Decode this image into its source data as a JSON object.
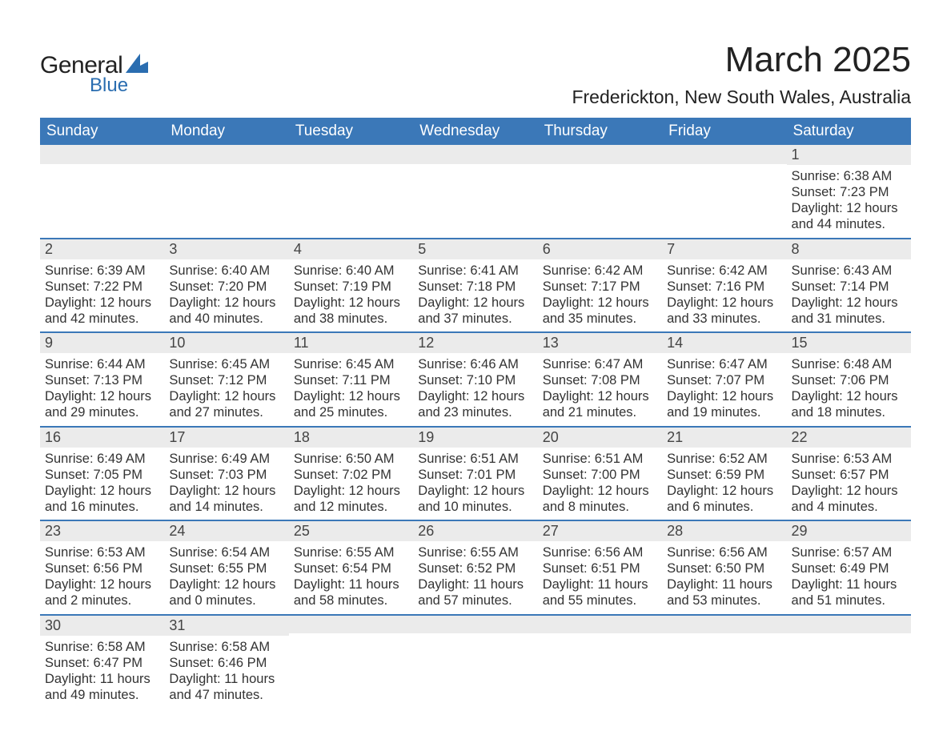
{
  "brand": {
    "general": "General",
    "blue": "Blue"
  },
  "title": "March 2025",
  "location": "Frederickton, New South Wales, Australia",
  "colors": {
    "header_bg": "#3b78b8",
    "header_text": "#ffffff",
    "daynum_bg": "#ebebeb",
    "daynum_border": "#3b78b8",
    "body_text": "#333333",
    "page_bg": "#ffffff",
    "logo_blue": "#2a6db0"
  },
  "weekdays": [
    "Sunday",
    "Monday",
    "Tuesday",
    "Wednesday",
    "Thursday",
    "Friday",
    "Saturday"
  ],
  "weeks": [
    [
      {
        "day": "",
        "sunrise": "",
        "sunset": "",
        "daylight": ""
      },
      {
        "day": "",
        "sunrise": "",
        "sunset": "",
        "daylight": ""
      },
      {
        "day": "",
        "sunrise": "",
        "sunset": "",
        "daylight": ""
      },
      {
        "day": "",
        "sunrise": "",
        "sunset": "",
        "daylight": ""
      },
      {
        "day": "",
        "sunrise": "",
        "sunset": "",
        "daylight": ""
      },
      {
        "day": "",
        "sunrise": "",
        "sunset": "",
        "daylight": ""
      },
      {
        "day": "1",
        "sunrise": "Sunrise: 6:38 AM",
        "sunset": "Sunset: 7:23 PM",
        "daylight": "Daylight: 12 hours and 44 minutes."
      }
    ],
    [
      {
        "day": "2",
        "sunrise": "Sunrise: 6:39 AM",
        "sunset": "Sunset: 7:22 PM",
        "daylight": "Daylight: 12 hours and 42 minutes."
      },
      {
        "day": "3",
        "sunrise": "Sunrise: 6:40 AM",
        "sunset": "Sunset: 7:20 PM",
        "daylight": "Daylight: 12 hours and 40 minutes."
      },
      {
        "day": "4",
        "sunrise": "Sunrise: 6:40 AM",
        "sunset": "Sunset: 7:19 PM",
        "daylight": "Daylight: 12 hours and 38 minutes."
      },
      {
        "day": "5",
        "sunrise": "Sunrise: 6:41 AM",
        "sunset": "Sunset: 7:18 PM",
        "daylight": "Daylight: 12 hours and 37 minutes."
      },
      {
        "day": "6",
        "sunrise": "Sunrise: 6:42 AM",
        "sunset": "Sunset: 7:17 PM",
        "daylight": "Daylight: 12 hours and 35 minutes."
      },
      {
        "day": "7",
        "sunrise": "Sunrise: 6:42 AM",
        "sunset": "Sunset: 7:16 PM",
        "daylight": "Daylight: 12 hours and 33 minutes."
      },
      {
        "day": "8",
        "sunrise": "Sunrise: 6:43 AM",
        "sunset": "Sunset: 7:14 PM",
        "daylight": "Daylight: 12 hours and 31 minutes."
      }
    ],
    [
      {
        "day": "9",
        "sunrise": "Sunrise: 6:44 AM",
        "sunset": "Sunset: 7:13 PM",
        "daylight": "Daylight: 12 hours and 29 minutes."
      },
      {
        "day": "10",
        "sunrise": "Sunrise: 6:45 AM",
        "sunset": "Sunset: 7:12 PM",
        "daylight": "Daylight: 12 hours and 27 minutes."
      },
      {
        "day": "11",
        "sunrise": "Sunrise: 6:45 AM",
        "sunset": "Sunset: 7:11 PM",
        "daylight": "Daylight: 12 hours and 25 minutes."
      },
      {
        "day": "12",
        "sunrise": "Sunrise: 6:46 AM",
        "sunset": "Sunset: 7:10 PM",
        "daylight": "Daylight: 12 hours and 23 minutes."
      },
      {
        "day": "13",
        "sunrise": "Sunrise: 6:47 AM",
        "sunset": "Sunset: 7:08 PM",
        "daylight": "Daylight: 12 hours and 21 minutes."
      },
      {
        "day": "14",
        "sunrise": "Sunrise: 6:47 AM",
        "sunset": "Sunset: 7:07 PM",
        "daylight": "Daylight: 12 hours and 19 minutes."
      },
      {
        "day": "15",
        "sunrise": "Sunrise: 6:48 AM",
        "sunset": "Sunset: 7:06 PM",
        "daylight": "Daylight: 12 hours and 18 minutes."
      }
    ],
    [
      {
        "day": "16",
        "sunrise": "Sunrise: 6:49 AM",
        "sunset": "Sunset: 7:05 PM",
        "daylight": "Daylight: 12 hours and 16 minutes."
      },
      {
        "day": "17",
        "sunrise": "Sunrise: 6:49 AM",
        "sunset": "Sunset: 7:03 PM",
        "daylight": "Daylight: 12 hours and 14 minutes."
      },
      {
        "day": "18",
        "sunrise": "Sunrise: 6:50 AM",
        "sunset": "Sunset: 7:02 PM",
        "daylight": "Daylight: 12 hours and 12 minutes."
      },
      {
        "day": "19",
        "sunrise": "Sunrise: 6:51 AM",
        "sunset": "Sunset: 7:01 PM",
        "daylight": "Daylight: 12 hours and 10 minutes."
      },
      {
        "day": "20",
        "sunrise": "Sunrise: 6:51 AM",
        "sunset": "Sunset: 7:00 PM",
        "daylight": "Daylight: 12 hours and 8 minutes."
      },
      {
        "day": "21",
        "sunrise": "Sunrise: 6:52 AM",
        "sunset": "Sunset: 6:59 PM",
        "daylight": "Daylight: 12 hours and 6 minutes."
      },
      {
        "day": "22",
        "sunrise": "Sunrise: 6:53 AM",
        "sunset": "Sunset: 6:57 PM",
        "daylight": "Daylight: 12 hours and 4 minutes."
      }
    ],
    [
      {
        "day": "23",
        "sunrise": "Sunrise: 6:53 AM",
        "sunset": "Sunset: 6:56 PM",
        "daylight": "Daylight: 12 hours and 2 minutes."
      },
      {
        "day": "24",
        "sunrise": "Sunrise: 6:54 AM",
        "sunset": "Sunset: 6:55 PM",
        "daylight": "Daylight: 12 hours and 0 minutes."
      },
      {
        "day": "25",
        "sunrise": "Sunrise: 6:55 AM",
        "sunset": "Sunset: 6:54 PM",
        "daylight": "Daylight: 11 hours and 58 minutes."
      },
      {
        "day": "26",
        "sunrise": "Sunrise: 6:55 AM",
        "sunset": "Sunset: 6:52 PM",
        "daylight": "Daylight: 11 hours and 57 minutes."
      },
      {
        "day": "27",
        "sunrise": "Sunrise: 6:56 AM",
        "sunset": "Sunset: 6:51 PM",
        "daylight": "Daylight: 11 hours and 55 minutes."
      },
      {
        "day": "28",
        "sunrise": "Sunrise: 6:56 AM",
        "sunset": "Sunset: 6:50 PM",
        "daylight": "Daylight: 11 hours and 53 minutes."
      },
      {
        "day": "29",
        "sunrise": "Sunrise: 6:57 AM",
        "sunset": "Sunset: 6:49 PM",
        "daylight": "Daylight: 11 hours and 51 minutes."
      }
    ],
    [
      {
        "day": "30",
        "sunrise": "Sunrise: 6:58 AM",
        "sunset": "Sunset: 6:47 PM",
        "daylight": "Daylight: 11 hours and 49 minutes."
      },
      {
        "day": "31",
        "sunrise": "Sunrise: 6:58 AM",
        "sunset": "Sunset: 6:46 PM",
        "daylight": "Daylight: 11 hours and 47 minutes."
      },
      {
        "day": "",
        "sunrise": "",
        "sunset": "",
        "daylight": ""
      },
      {
        "day": "",
        "sunrise": "",
        "sunset": "",
        "daylight": ""
      },
      {
        "day": "",
        "sunrise": "",
        "sunset": "",
        "daylight": ""
      },
      {
        "day": "",
        "sunrise": "",
        "sunset": "",
        "daylight": ""
      },
      {
        "day": "",
        "sunrise": "",
        "sunset": "",
        "daylight": ""
      }
    ]
  ]
}
